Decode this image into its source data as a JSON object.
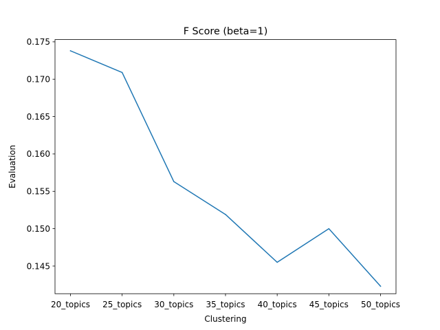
{
  "chart_data": {
    "type": "line",
    "title": "F Score (beta=1)",
    "xlabel": "Clustering",
    "ylabel": "Evaluation",
    "categories": [
      "20_topics",
      "25_topics",
      "30_topics",
      "35_topics",
      "40_topics",
      "45_topics",
      "50_topics"
    ],
    "series": [
      {
        "values": [
          0.1738,
          0.1709,
          0.1563,
          0.1519,
          0.1455,
          0.15,
          0.1423
        ],
        "color": "#1f77b4"
      }
    ],
    "yticks": [
      "0.145",
      "0.150",
      "0.155",
      "0.160",
      "0.165",
      "0.170",
      "0.175"
    ],
    "ylim": [
      0.1413,
      0.1753
    ],
    "grid": false,
    "legend": "none"
  }
}
